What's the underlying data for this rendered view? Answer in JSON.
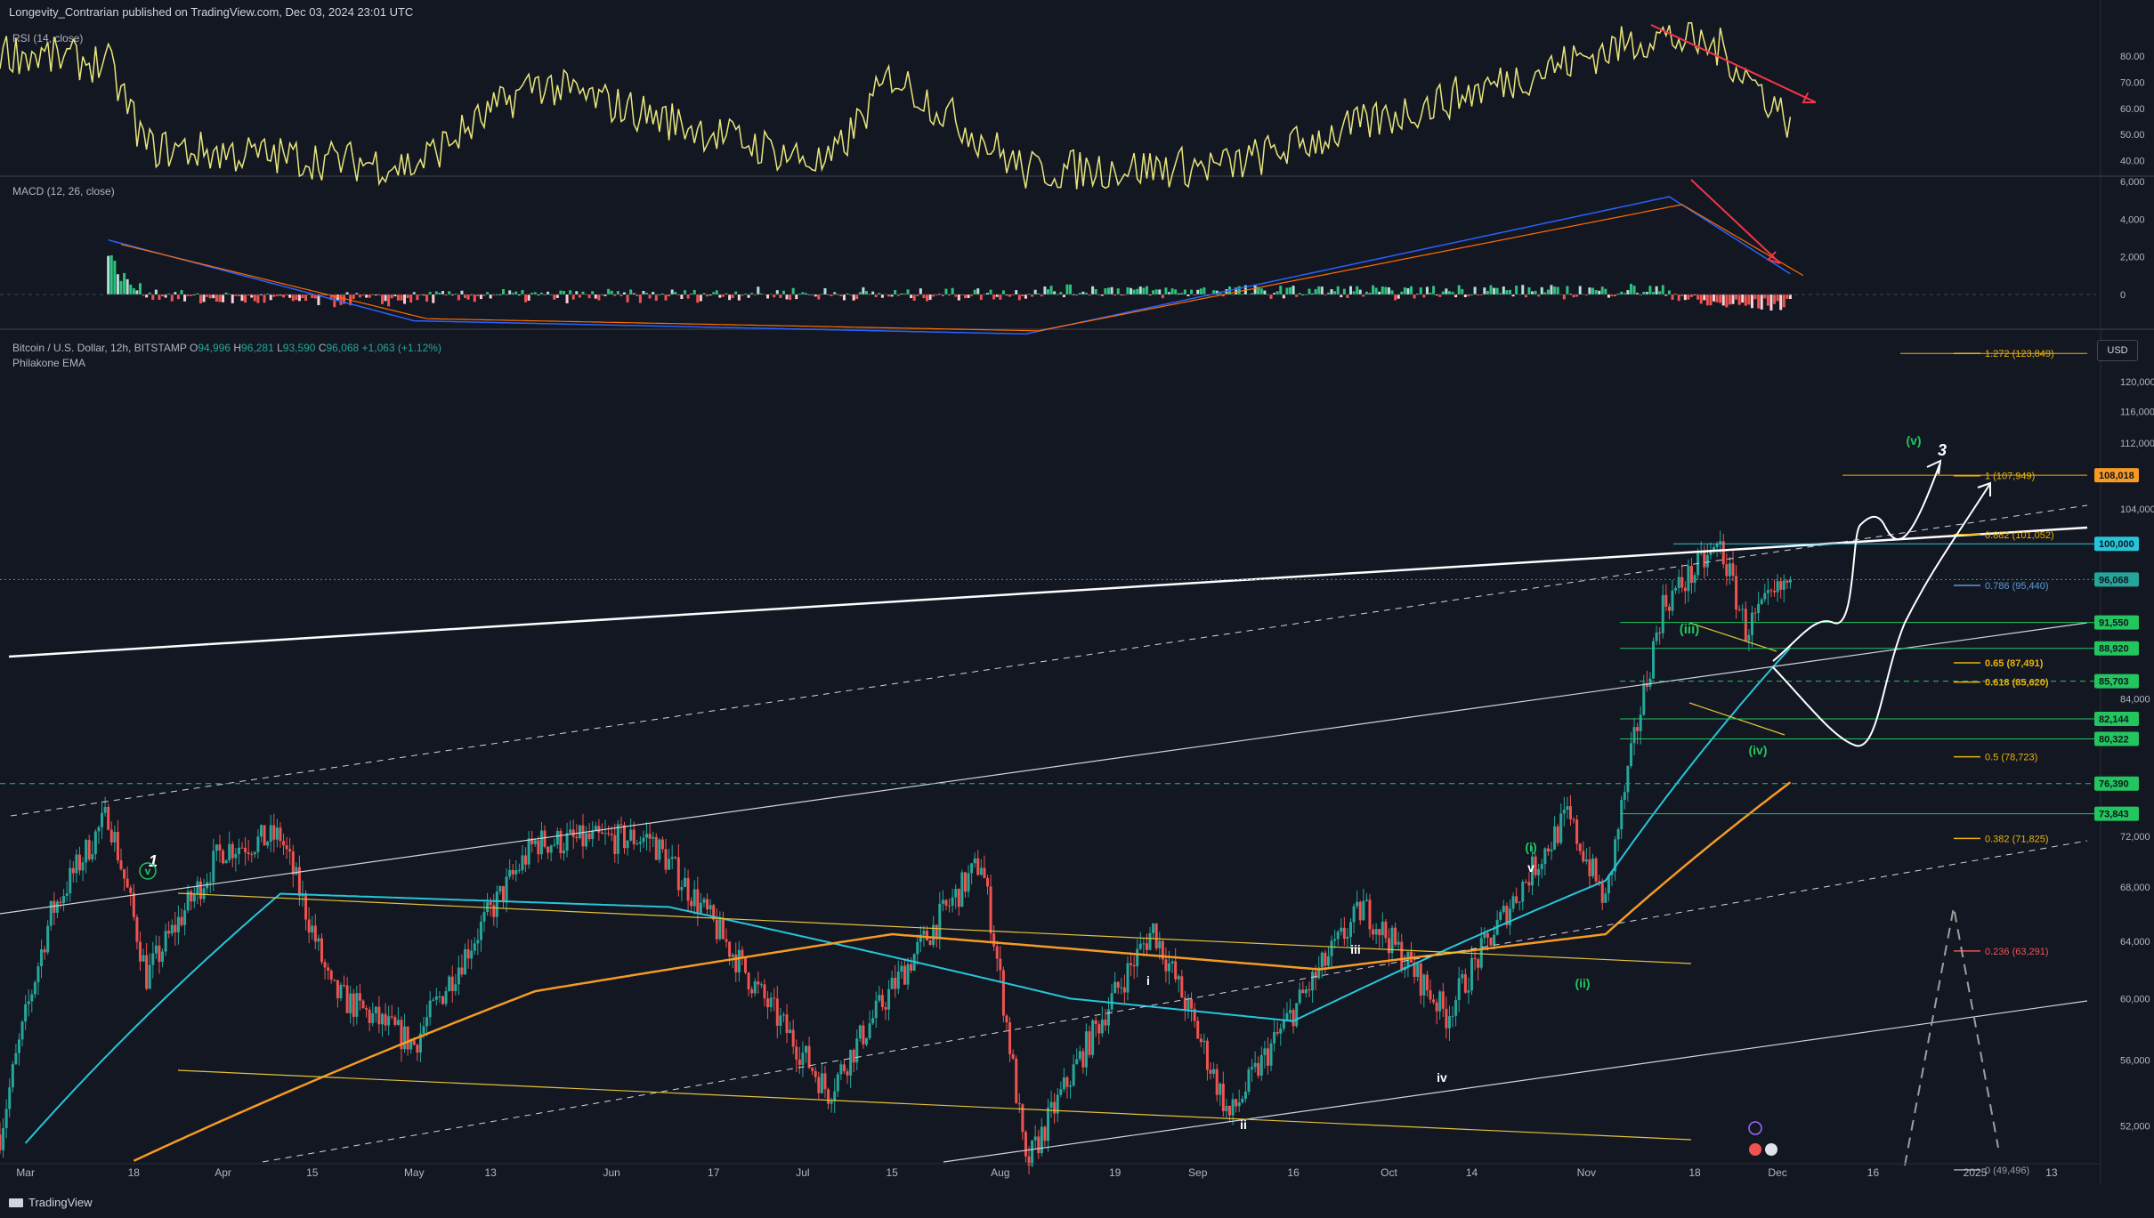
{
  "header": {
    "published": "Longevity_Contrarian published on TradingView.com, Dec 03, 2024 23:01 UTC"
  },
  "brand": {
    "name": "TradingView"
  },
  "colors": {
    "bg": "#131722",
    "up": "#26a69a",
    "down": "#ef5350",
    "rsi": "#e8e57a",
    "ema_fast": "#26c6da",
    "ema_slow": "#f59b23",
    "macd": "#2962ff",
    "signal": "#ff6d00",
    "level": "#22c55e",
    "fib": "#eab308",
    "arrow": "#f23645"
  },
  "rsi": {
    "label": "RSI (14, close)",
    "ticks": [
      "80.00",
      "70.00",
      "60.00",
      "50.00",
      "40.00"
    ]
  },
  "macd": {
    "label": "MACD (12, 26, close)",
    "ticks": [
      "6,000",
      "4,000",
      "2,000",
      "0"
    ]
  },
  "main": {
    "symbol": "Bitcoin / U.S. Dollar, 12h, BITSTAMP",
    "o_label": "O",
    "o": "94,996",
    "h_label": "H",
    "h": "96,281",
    "l_label": "L",
    "l": "93,590",
    "c_label": "C",
    "c": "96,068",
    "change": "+1,063 (+1.12%)",
    "indicator": "Philakone EMA",
    "currency": "USD",
    "price_ticks": [
      "120,000",
      "116,000",
      "112,000",
      "104,000",
      "84,000",
      "72,000",
      "68,000",
      "64,000",
      "60,000",
      "56,000",
      "52,000"
    ],
    "current_price": "96,068"
  },
  "x_axis": [
    "Mar",
    "18",
    "Apr",
    "15",
    "May",
    "13",
    "Jun",
    "17",
    "Jul",
    "15",
    "Aug",
    "19",
    "Sep",
    "16",
    "Oct",
    "14",
    "Nov",
    "18",
    "Dec",
    "16",
    "2025",
    "13"
  ],
  "fib_levels": [
    {
      "label": "1.272 (123,849)",
      "value": 123849
    },
    {
      "label": "1 (107,949)",
      "value": 107949
    },
    {
      "label": "0.882 (101,052)",
      "value": 101052
    },
    {
      "label": "0.786 (95,440)",
      "value": 95440
    },
    {
      "label": "0.65 (87,491)",
      "value": 87491
    },
    {
      "label": "0.618 (85,620)",
      "value": 85620
    },
    {
      "label": "0.5 (78,723)",
      "value": 78723
    },
    {
      "label": "0.382 (71,825)",
      "value": 71825
    },
    {
      "label": "0.236 (63,291)",
      "value": 63291
    },
    {
      "label": "0 (49,496)",
      "value": 49496
    }
  ],
  "price_badges": [
    {
      "label": "108,018",
      "value": 108018,
      "color": "#f59b23"
    },
    {
      "label": "100,000",
      "value": 100000,
      "color": "#26c6da"
    },
    {
      "label": "96,068",
      "value": 96068,
      "color": "#26a69a"
    },
    {
      "label": "91,550",
      "value": 91550,
      "color": "#22c55e"
    },
    {
      "label": "88,920",
      "value": 88920,
      "color": "#22c55e"
    },
    {
      "label": "85,703",
      "value": 85703,
      "color": "#22c55e"
    },
    {
      "label": "82,144",
      "value": 82144,
      "color": "#22c55e"
    },
    {
      "label": "80,322",
      "value": 80322,
      "color": "#22c55e"
    },
    {
      "label": "76,390",
      "value": 76390,
      "color": "#22c55e"
    },
    {
      "label": "73,843",
      "value": 73843,
      "color": "#22c55e"
    }
  ],
  "wave_labels": [
    {
      "text": "1",
      "color": "#ffffff"
    },
    {
      "text": "v",
      "color": "#22c55e"
    },
    {
      "text": "i",
      "color": "#ffffff"
    },
    {
      "text": "ii",
      "color": "#ffffff"
    },
    {
      "text": "iii",
      "color": "#ffffff"
    },
    {
      "text": "iv",
      "color": "#ffffff"
    },
    {
      "text": "v",
      "color": "#ffffff"
    },
    {
      "text": "(i)",
      "color": "#22c55e"
    },
    {
      "text": "(ii)",
      "color": "#22c55e"
    },
    {
      "text": "(iii)",
      "color": "#22c55e"
    },
    {
      "text": "(iv)",
      "color": "#22c55e"
    },
    {
      "text": "(v)",
      "color": "#22c55e"
    },
    {
      "text": "3",
      "color": "#ffffff"
    }
  ],
  "chart_data": {
    "type": "candlestick",
    "title": "Bitcoin / U.S. Dollar, 12h, BITSTAMP",
    "x_range": [
      "2024-02-26",
      "2025-01-20"
    ],
    "ylim": [
      49000,
      126000
    ],
    "key_points": [
      {
        "date": "2024-02-26",
        "price": 51500
      },
      {
        "date": "2024-03-05",
        "price": 66000
      },
      {
        "date": "2024-03-14",
        "price": 73800
      },
      {
        "date": "2024-03-20",
        "price": 61500
      },
      {
        "date": "2024-04-01",
        "price": 71000
      },
      {
        "date": "2024-04-10",
        "price": 72000
      },
      {
        "date": "2024-04-18",
        "price": 60500
      },
      {
        "date": "2024-05-01",
        "price": 57000
      },
      {
        "date": "2024-05-20",
        "price": 71500
      },
      {
        "date": "2024-06-07",
        "price": 71900
      },
      {
        "date": "2024-06-24",
        "price": 60500
      },
      {
        "date": "2024-07-05",
        "price": 54000
      },
      {
        "date": "2024-07-29",
        "price": 70000
      },
      {
        "date": "2024-08-05",
        "price": 49600
      },
      {
        "date": "2024-08-25",
        "price": 64900
      },
      {
        "date": "2024-09-06",
        "price": 52500
      },
      {
        "date": "2024-09-27",
        "price": 66500
      },
      {
        "date": "2024-10-10",
        "price": 58900
      },
      {
        "date": "2024-10-29",
        "price": 73600
      },
      {
        "date": "2024-11-04",
        "price": 66800
      },
      {
        "date": "2024-11-13",
        "price": 93400
      },
      {
        "date": "2024-11-22",
        "price": 99800
      },
      {
        "date": "2024-11-26",
        "price": 90800
      },
      {
        "date": "2024-12-03",
        "price": 96068
      }
    ],
    "rsi_key_points": [
      {
        "date": "2024-02-26",
        "value": 82
      },
      {
        "date": "2024-03-14",
        "value": 77
      },
      {
        "date": "2024-03-20",
        "value": 45
      },
      {
        "date": "2024-05-01",
        "value": 38
      },
      {
        "date": "2024-05-20",
        "value": 70
      },
      {
        "date": "2024-07-05",
        "value": 38
      },
      {
        "date": "2024-07-15",
        "value": 73
      },
      {
        "date": "2024-08-05",
        "value": 36
      },
      {
        "date": "2024-09-06",
        "value": 38
      },
      {
        "date": "2024-11-12",
        "value": 88
      },
      {
        "date": "2024-11-22",
        "value": 83
      },
      {
        "date": "2024-12-03",
        "value": 55
      }
    ],
    "macd_key_points": [
      {
        "date": "2024-03-14",
        "value": 2900
      },
      {
        "date": "2024-05-01",
        "value": -1400
      },
      {
        "date": "2024-08-05",
        "value": -2100
      },
      {
        "date": "2024-11-14",
        "value": 5200
      },
      {
        "date": "2024-12-03",
        "value": 1100
      }
    ],
    "ema_fast_key_points": [
      {
        "date": "2024-03-01",
        "price": 51000
      },
      {
        "date": "2024-04-10",
        "price": 67500
      },
      {
        "date": "2024-06-10",
        "price": 66500
      },
      {
        "date": "2024-08-12",
        "price": 60000
      },
      {
        "date": "2024-09-16",
        "price": 58500
      },
      {
        "date": "2024-11-04",
        "price": 68500
      },
      {
        "date": "2024-12-03",
        "price": 89000
      }
    ],
    "ema_slow_key_points": [
      {
        "date": "2024-03-18",
        "price": 50000
      },
      {
        "date": "2024-05-20",
        "price": 60500
      },
      {
        "date": "2024-07-15",
        "price": 64500
      },
      {
        "date": "2024-09-20",
        "price": 62000
      },
      {
        "date": "2024-11-04",
        "price": 64500
      },
      {
        "date": "2024-12-03",
        "price": 76500
      }
    ]
  }
}
